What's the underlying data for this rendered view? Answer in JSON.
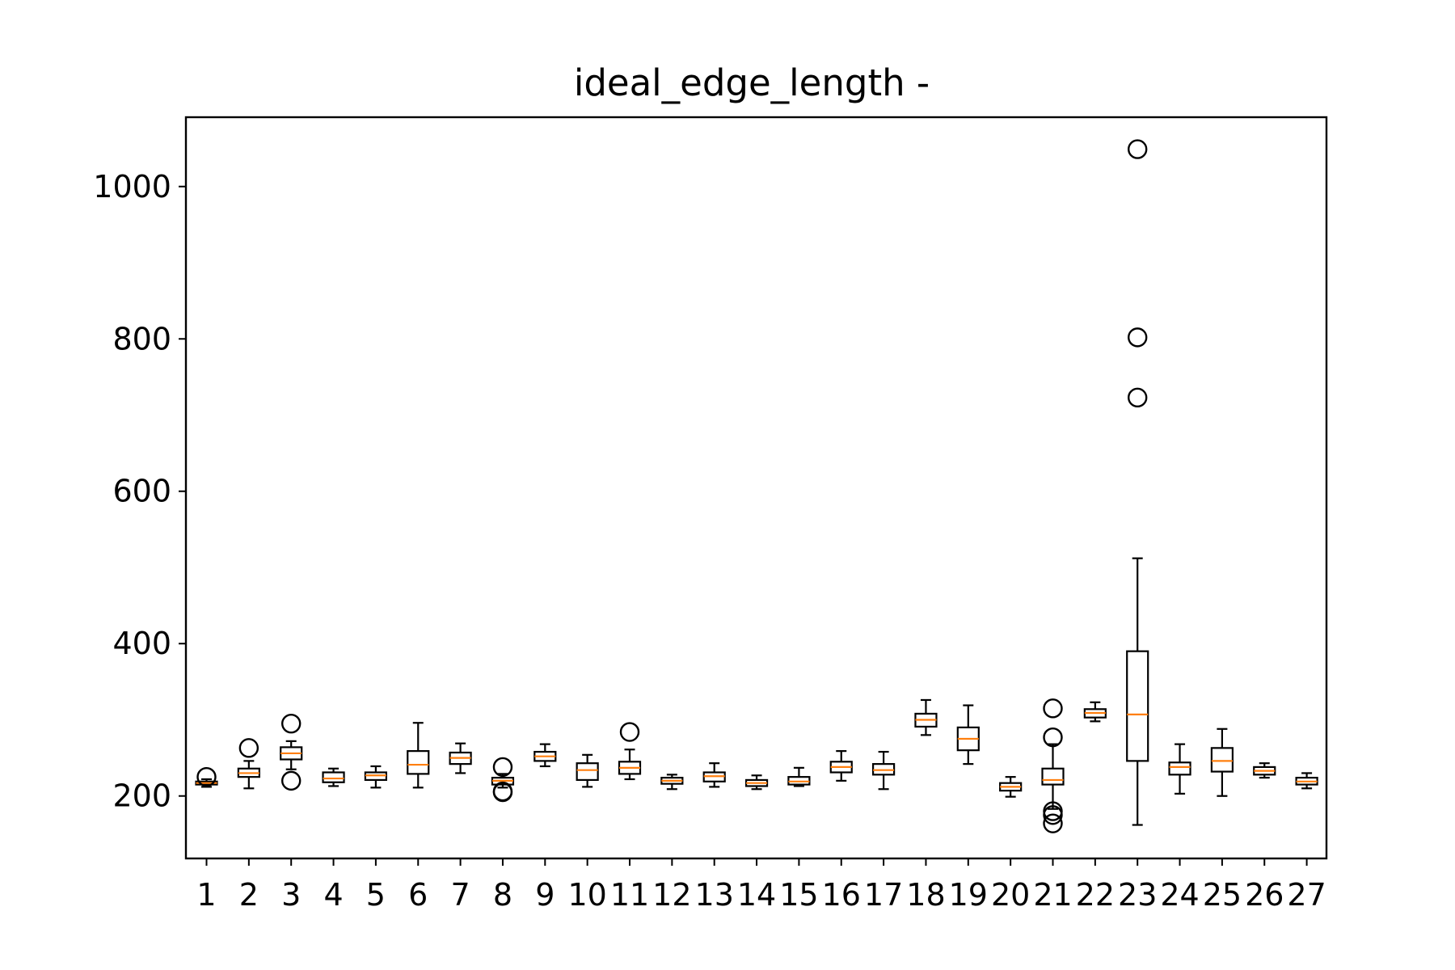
{
  "chart_data": {
    "type": "box",
    "title": "ideal_edge_length -",
    "xlabel": "",
    "ylabel": "",
    "ylim": [
      118,
      1091
    ],
    "yticks": [
      200,
      400,
      600,
      800,
      1000
    ],
    "grid": false,
    "categories": [
      "1",
      "2",
      "3",
      "4",
      "5",
      "6",
      "7",
      "8",
      "9",
      "10",
      "11",
      "12",
      "13",
      "14",
      "15",
      "16",
      "17",
      "18",
      "19",
      "20",
      "21",
      "22",
      "23",
      "24",
      "25",
      "26",
      "27"
    ],
    "boxes": [
      {
        "whislo": 212,
        "q1": 215,
        "med": 217,
        "q3": 219,
        "whishi": 222,
        "fliers": [
          225
        ]
      },
      {
        "whislo": 210,
        "q1": 225,
        "med": 230,
        "q3": 236,
        "whishi": 246,
        "fliers": [
          263
        ]
      },
      {
        "whislo": 235,
        "q1": 248,
        "med": 256,
        "q3": 264,
        "whishi": 272,
        "fliers": [
          295,
          220
        ]
      },
      {
        "whislo": 213,
        "q1": 218,
        "med": 223,
        "q3": 231,
        "whishi": 236,
        "fliers": []
      },
      {
        "whislo": 211,
        "q1": 221,
        "med": 227,
        "q3": 231,
        "whishi": 239,
        "fliers": []
      },
      {
        "whislo": 211,
        "q1": 229,
        "med": 241,
        "q3": 259,
        "whishi": 296,
        "fliers": []
      },
      {
        "whislo": 230,
        "q1": 242,
        "med": 250,
        "q3": 257,
        "whishi": 269,
        "fliers": []
      },
      {
        "whislo": 211,
        "q1": 215,
        "med": 220,
        "q3": 224,
        "whishi": 229,
        "fliers": [
          238,
          206,
          205
        ]
      },
      {
        "whislo": 239,
        "q1": 246,
        "med": 252,
        "q3": 258,
        "whishi": 268,
        "fliers": []
      },
      {
        "whislo": 212,
        "q1": 221,
        "med": 234,
        "q3": 243,
        "whishi": 254,
        "fliers": []
      },
      {
        "whislo": 222,
        "q1": 229,
        "med": 237,
        "q3": 245,
        "whishi": 261,
        "fliers": [
          284
        ]
      },
      {
        "whislo": 209,
        "q1": 216,
        "med": 220,
        "q3": 224,
        "whishi": 228,
        "fliers": []
      },
      {
        "whislo": 212,
        "q1": 219,
        "med": 226,
        "q3": 231,
        "whishi": 243,
        "fliers": []
      },
      {
        "whislo": 209,
        "q1": 213,
        "med": 217,
        "q3": 221,
        "whishi": 227,
        "fliers": []
      },
      {
        "whislo": 213,
        "q1": 215,
        "med": 219,
        "q3": 225,
        "whishi": 237,
        "fliers": []
      },
      {
        "whislo": 220,
        "q1": 231,
        "med": 238,
        "q3": 245,
        "whishi": 259,
        "fliers": []
      },
      {
        "whislo": 209,
        "q1": 228,
        "med": 234,
        "q3": 242,
        "whishi": 258,
        "fliers": []
      },
      {
        "whislo": 280,
        "q1": 291,
        "med": 300,
        "q3": 308,
        "whishi": 326,
        "fliers": []
      },
      {
        "whislo": 242,
        "q1": 260,
        "med": 275,
        "q3": 290,
        "whishi": 319,
        "fliers": []
      },
      {
        "whislo": 199,
        "q1": 207,
        "med": 212,
        "q3": 217,
        "whishi": 225,
        "fliers": []
      },
      {
        "whislo": 183,
        "q1": 215,
        "med": 221,
        "q3": 236,
        "whishi": 268,
        "fliers": [
          315,
          277,
          180,
          175,
          164
        ]
      },
      {
        "whislo": 298,
        "q1": 303,
        "med": 309,
        "q3": 314,
        "whishi": 323,
        "fliers": []
      },
      {
        "whislo": 162,
        "q1": 246,
        "med": 307,
        "q3": 390,
        "whishi": 512,
        "fliers": [
          1049,
          802,
          723
        ]
      },
      {
        "whislo": 203,
        "q1": 228,
        "med": 238,
        "q3": 244,
        "whishi": 268,
        "fliers": []
      },
      {
        "whislo": 200,
        "q1": 232,
        "med": 246,
        "q3": 263,
        "whishi": 288,
        "fliers": []
      },
      {
        "whislo": 224,
        "q1": 228,
        "med": 233,
        "q3": 238,
        "whishi": 243,
        "fliers": []
      },
      {
        "whislo": 210,
        "q1": 215,
        "med": 219,
        "q3": 224,
        "whishi": 230,
        "fliers": []
      }
    ],
    "colors": {
      "box": "#000000",
      "median": "#ff7f0e",
      "flier": "#000000"
    }
  }
}
